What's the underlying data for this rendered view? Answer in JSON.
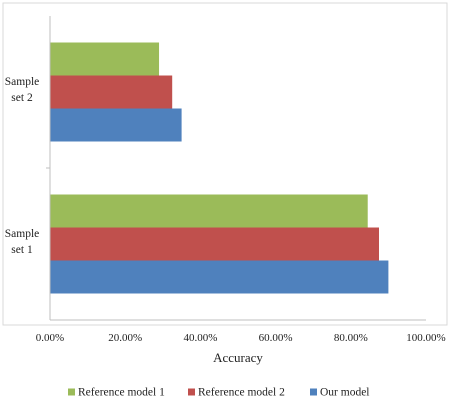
{
  "chart_data": {
    "type": "bar",
    "orientation": "horizontal",
    "categories": [
      "Sample set 2",
      "Sample set 1"
    ],
    "category_label_lines": [
      [
        "Sample",
        "set 2"
      ],
      [
        "Sample",
        "set 1"
      ]
    ],
    "series": [
      {
        "name": "Reference model 1",
        "color": "#9bbb59",
        "values": [
          0.29,
          0.845
        ]
      },
      {
        "name": "Reference model 2",
        "color": "#c0504d",
        "values": [
          0.325,
          0.875
        ]
      },
      {
        "name": "Our model",
        "color": "#4f81bd",
        "values": [
          0.35,
          0.9
        ]
      }
    ],
    "xlabel": "Accuracy",
    "ylabel": "",
    "xlim": [
      0,
      1
    ],
    "xticks": [
      0,
      0.2,
      0.4,
      0.6,
      0.8,
      1.0
    ],
    "xtick_labels": [
      "0.00%",
      "20.00%",
      "40.00%",
      "60.00%",
      "80.00%",
      "100.00%"
    ],
    "grid": false,
    "legend_position": "bottom"
  }
}
